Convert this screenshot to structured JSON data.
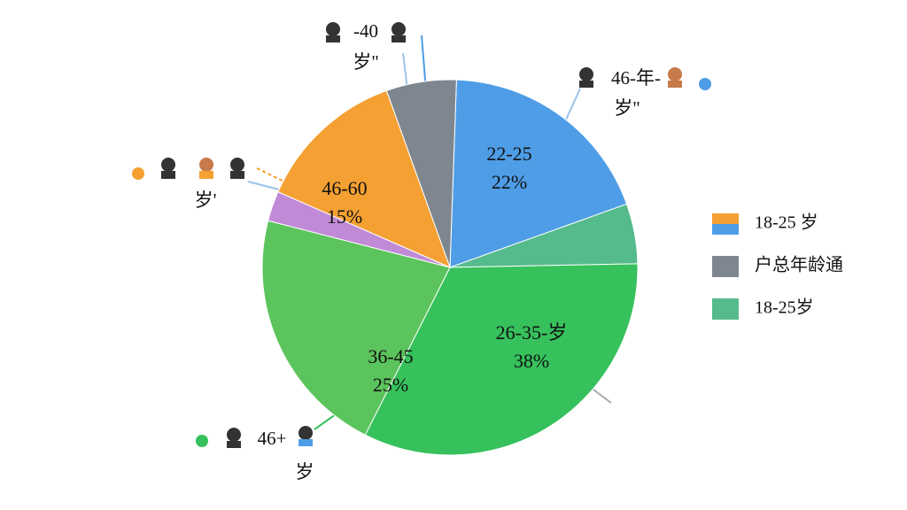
{
  "chart_data": {
    "type": "pie",
    "categories": [
      "22-25",
      null,
      "26-35-岁",
      "36-45",
      null,
      "46-60",
      null
    ],
    "values": [
      22,
      6,
      38,
      25,
      3,
      15,
      7
    ],
    "value_labels": [
      "22%",
      null,
      "38%",
      "25%",
      null,
      "15%",
      null
    ],
    "colors": [
      "#4f9de6",
      "#55bb8c",
      "#36c15c",
      "#5cc45c",
      "#c08ad6",
      "#f4a032",
      "#7e868f"
    ],
    "annotations": [
      "-40",
      "岁\"",
      "46-年-",
      "岁\"",
      "岁'",
      "46+",
      "岁"
    ],
    "legend": [
      {
        "name": "18-25 岁",
        "colors": [
          "#f4a032",
          "#4f9de6"
        ]
      },
      {
        "name": "户总年龄通",
        "colors": [
          "#7e868f"
        ]
      },
      {
        "name": "18-25岁",
        "colors": [
          "#55bb8c"
        ]
      }
    ]
  }
}
